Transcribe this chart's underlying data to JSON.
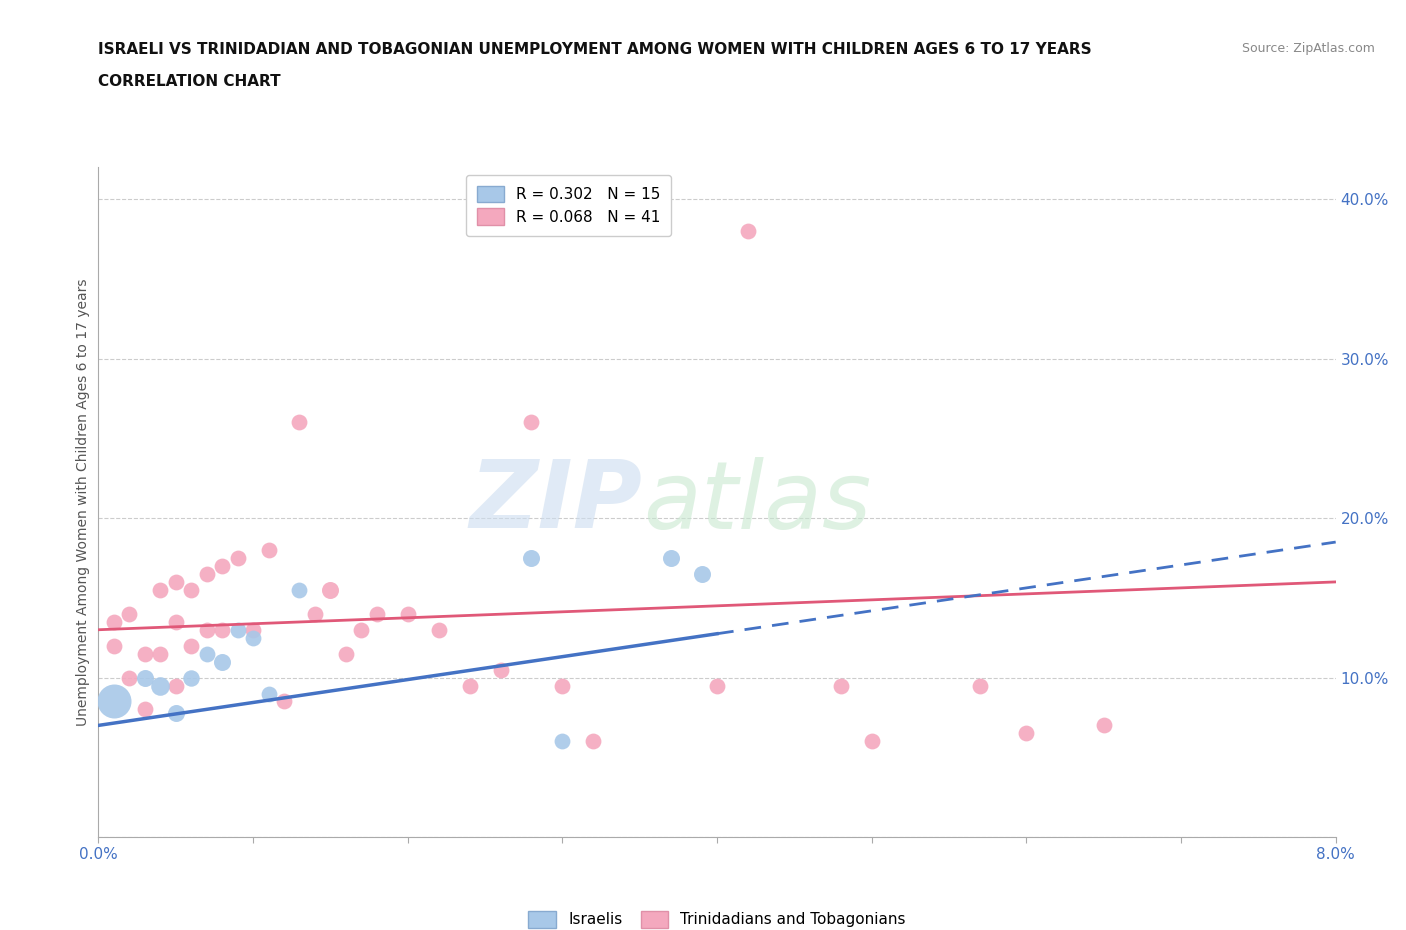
{
  "title_line1": "ISRAELI VS TRINIDADIAN AND TOBAGONIAN UNEMPLOYMENT AMONG WOMEN WITH CHILDREN AGES 6 TO 17 YEARS",
  "title_line2": "CORRELATION CHART",
  "source": "Source: ZipAtlas.com",
  "ylabel": "Unemployment Among Women with Children Ages 6 to 17 years",
  "xlim": [
    0.0,
    0.08
  ],
  "ylim": [
    0.0,
    0.42
  ],
  "xticks": [
    0.0,
    0.01,
    0.02,
    0.03,
    0.04,
    0.05,
    0.06,
    0.07,
    0.08
  ],
  "yticks": [
    0.0,
    0.1,
    0.2,
    0.3,
    0.4
  ],
  "ytick_labels": [
    "",
    "10.0%",
    "20.0%",
    "30.0%",
    "40.0%"
  ],
  "xtick_labels": [
    "0.0%",
    "",
    "",
    "",
    "",
    "",
    "",
    "",
    "8.0%"
  ],
  "israeli_color": "#a8c8e8",
  "trinidadian_color": "#f4a8be",
  "blue_line_color": "#4472c4",
  "pink_line_color": "#e05878",
  "R_israeli": 0.302,
  "N_israeli": 15,
  "R_trinidadian": 0.068,
  "N_trinidadian": 41,
  "isr_line_x0": 0.0,
  "isr_line_y0": 0.07,
  "isr_line_x1": 0.08,
  "isr_line_y1": 0.185,
  "isr_line_solid_end": 0.04,
  "tri_line_x0": 0.0,
  "tri_line_y0": 0.13,
  "tri_line_x1": 0.08,
  "tri_line_y1": 0.16,
  "israeli_x": [
    0.001,
    0.003,
    0.004,
    0.005,
    0.006,
    0.007,
    0.008,
    0.009,
    0.01,
    0.011,
    0.013,
    0.028,
    0.03,
    0.037,
    0.039
  ],
  "israeli_y": [
    0.085,
    0.1,
    0.095,
    0.078,
    0.1,
    0.115,
    0.11,
    0.13,
    0.125,
    0.09,
    0.155,
    0.175,
    0.06,
    0.175,
    0.165
  ],
  "israeli_size": [
    600,
    150,
    180,
    150,
    140,
    130,
    150,
    130,
    130,
    130,
    130,
    150,
    130,
    150,
    150
  ],
  "trinidadian_x": [
    0.001,
    0.001,
    0.002,
    0.002,
    0.003,
    0.003,
    0.004,
    0.004,
    0.005,
    0.005,
    0.005,
    0.006,
    0.006,
    0.007,
    0.007,
    0.008,
    0.008,
    0.009,
    0.01,
    0.011,
    0.012,
    0.013,
    0.014,
    0.015,
    0.016,
    0.017,
    0.018,
    0.02,
    0.022,
    0.024,
    0.026,
    0.028,
    0.03,
    0.032,
    0.04,
    0.042,
    0.048,
    0.05,
    0.057,
    0.06,
    0.065
  ],
  "trinidadian_y": [
    0.12,
    0.135,
    0.1,
    0.14,
    0.08,
    0.115,
    0.115,
    0.155,
    0.095,
    0.135,
    0.16,
    0.12,
    0.155,
    0.13,
    0.165,
    0.13,
    0.17,
    0.175,
    0.13,
    0.18,
    0.085,
    0.26,
    0.14,
    0.155,
    0.115,
    0.13,
    0.14,
    0.14,
    0.13,
    0.095,
    0.105,
    0.26,
    0.095,
    0.06,
    0.095,
    0.38,
    0.095,
    0.06,
    0.095,
    0.065,
    0.07
  ],
  "trinidadian_size": [
    130,
    130,
    130,
    130,
    130,
    130,
    130,
    130,
    130,
    130,
    130,
    130,
    130,
    130,
    130,
    130,
    130,
    130,
    130,
    130,
    130,
    130,
    130,
    150,
    130,
    130,
    130,
    130,
    130,
    130,
    130,
    130,
    130,
    130,
    130,
    130,
    130,
    130,
    130,
    130,
    130
  ],
  "grid_color": "#cccccc",
  "background_color": "#ffffff",
  "axis_color": "#aaaaaa"
}
